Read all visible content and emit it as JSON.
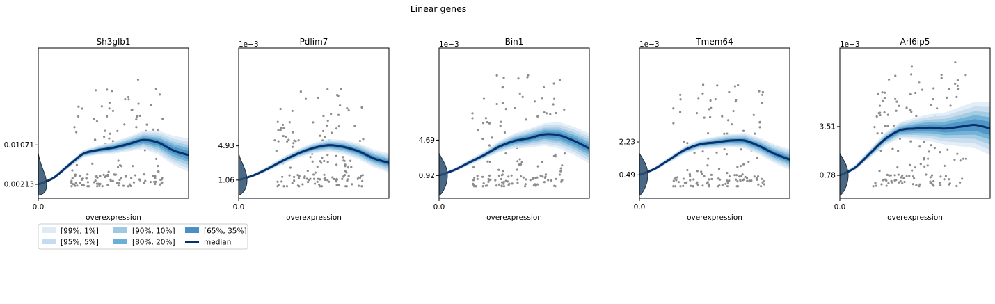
{
  "figure": {
    "title": "Linear genes"
  },
  "colors": {
    "band_outer": "#deebf7",
    "band_mid": "#c6dbef",
    "band_inner": "#9ecae1",
    "band_core": "#6baed6",
    "band_center": "#4a90c4",
    "median": "#08306b",
    "points": "#8c8c8c",
    "density": "#2b4e6e"
  },
  "legend": {
    "placement": "below-left",
    "entries": [
      {
        "label": "[99%, 1%]",
        "color": "#deebf7"
      },
      {
        "label": "[95%, 5%]",
        "color": "#c6dbef"
      },
      {
        "label": "[90%, 10%]",
        "color": "#9ecae1"
      },
      {
        "label": "[80%, 20%]",
        "color": "#6baed6"
      },
      {
        "label": "[65%, 35%]",
        "color": "#4a90c4"
      },
      {
        "label": "median",
        "color": "#08306b",
        "kind": "line"
      }
    ]
  },
  "chart_data": [
    {
      "type": "line",
      "title": "Sh3glb1",
      "xlabel": "overexpression",
      "ylabel": "",
      "offset_label": "",
      "x_ticks": [
        "0.0"
      ],
      "y_ticks": [
        0.00213,
        0.01071
      ],
      "y_tick_labels": [
        "0.00213",
        "0.01071"
      ],
      "xlim": [
        0,
        1
      ],
      "ylim": [
        -0.0009,
        0.0318
      ],
      "median": {
        "x": [
          0,
          0.1,
          0.2,
          0.3,
          0.4,
          0.5,
          0.6,
          0.7,
          0.8,
          0.9,
          1.0
        ],
        "y": [
          0.0021,
          0.0035,
          0.0062,
          0.0088,
          0.0096,
          0.0101,
          0.0109,
          0.0118,
          0.0112,
          0.0095,
          0.0085
        ]
      },
      "band_halfwidth": [
        0.0002,
        0.0004,
        0.0006,
        0.0008,
        0.001,
        0.0013,
        0.0016,
        0.002,
        0.0026,
        0.0032,
        0.0036
      ]
    },
    {
      "type": "line",
      "title": "Pdlim7",
      "xlabel": "overexpression",
      "ylabel": "",
      "offset_label": "1e−3",
      "x_ticks": [
        "0.0"
      ],
      "y_ticks": [
        1.06,
        4.93
      ],
      "y_tick_labels": [
        "1.06",
        "4.93"
      ],
      "xlim": [
        0,
        1
      ],
      "ylim": [
        -1.0,
        16.0
      ],
      "median": {
        "x": [
          0,
          0.1,
          0.2,
          0.3,
          0.4,
          0.5,
          0.6,
          0.7,
          0.8,
          0.9,
          1.0
        ],
        "y": [
          1.06,
          1.6,
          2.4,
          3.3,
          4.1,
          4.7,
          5.0,
          4.8,
          4.3,
          3.5,
          3.0
        ]
      },
      "band_halfwidth": [
        0.1,
        0.2,
        0.3,
        0.4,
        0.5,
        0.6,
        0.7,
        0.8,
        0.9,
        1.0,
        1.1
      ]
    },
    {
      "type": "line",
      "title": "Bin1",
      "xlabel": "overexpression",
      "ylabel": "",
      "offset_label": "1e−3",
      "x_ticks": [
        "0.0"
      ],
      "y_ticks": [
        0.92,
        4.69
      ],
      "y_tick_labels": [
        "0.92",
        "4.69"
      ],
      "xlim": [
        0,
        1
      ],
      "ylim": [
        -1.5,
        14.5
      ],
      "median": {
        "x": [
          0,
          0.1,
          0.2,
          0.3,
          0.4,
          0.5,
          0.6,
          0.7,
          0.8,
          0.9,
          1.0
        ],
        "y": [
          0.92,
          1.5,
          2.3,
          3.1,
          4.0,
          4.6,
          4.9,
          5.3,
          5.2,
          4.6,
          3.8
        ]
      },
      "band_halfwidth": [
        0.1,
        0.2,
        0.3,
        0.4,
        0.6,
        0.8,
        1.0,
        1.2,
        1.4,
        1.5,
        1.6
      ]
    },
    {
      "type": "line",
      "title": "Tmem64",
      "xlabel": "overexpression",
      "ylabel": "",
      "offset_label": "1e−3",
      "x_ticks": [
        "0.0"
      ],
      "y_ticks": [
        0.49,
        2.23
      ],
      "y_tick_labels": [
        "0.49",
        "2.23"
      ],
      "xlim": [
        0,
        1
      ],
      "ylim": [
        -0.75,
        7.2
      ],
      "median": {
        "x": [
          0,
          0.1,
          0.2,
          0.3,
          0.4,
          0.5,
          0.6,
          0.7,
          0.8,
          0.9,
          1.0
        ],
        "y": [
          0.49,
          0.8,
          1.3,
          1.8,
          2.1,
          2.2,
          2.3,
          2.3,
          2.0,
          1.6,
          1.3
        ]
      },
      "band_halfwidth": [
        0.05,
        0.1,
        0.15,
        0.2,
        0.25,
        0.3,
        0.35,
        0.4,
        0.45,
        0.5,
        0.55
      ]
    },
    {
      "type": "line",
      "title": "Arl6ip5",
      "xlabel": "overexpression",
      "ylabel": "",
      "offset_label": "1e−3",
      "x_ticks": [
        "0.0"
      ],
      "y_ticks": [
        0.78,
        3.51
      ],
      "y_tick_labels": [
        "0.78",
        "3.51"
      ],
      "xlim": [
        0,
        1
      ],
      "ylim": [
        -0.5,
        7.9
      ],
      "median": {
        "x": [
          0,
          0.1,
          0.2,
          0.3,
          0.4,
          0.5,
          0.6,
          0.7,
          0.8,
          0.9,
          1.0
        ],
        "y": [
          0.78,
          1.2,
          2.0,
          2.8,
          3.3,
          3.4,
          3.45,
          3.4,
          3.5,
          3.6,
          3.4
        ]
      },
      "band_halfwidth": [
        0.05,
        0.15,
        0.25,
        0.35,
        0.45,
        0.6,
        0.75,
        0.9,
        1.1,
        1.3,
        1.5
      ]
    }
  ]
}
